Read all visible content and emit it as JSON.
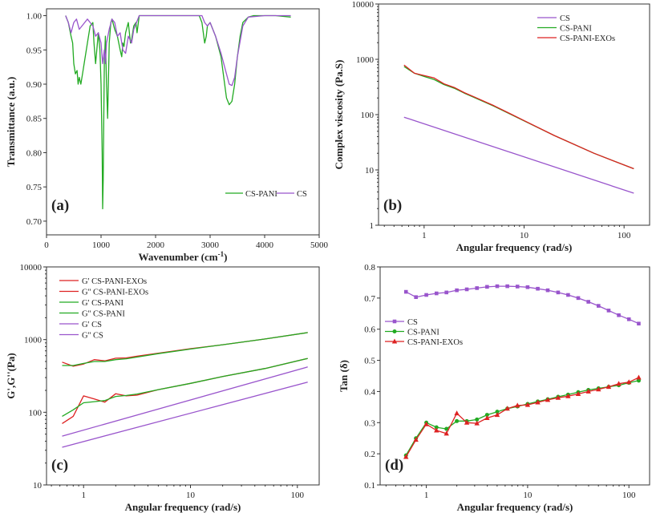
{
  "colors": {
    "cs": "#9955cc",
    "cs_pani": "#22aa22",
    "cs_pani_exos": "#dd2222",
    "axis": "#333333"
  },
  "chart_data": [
    {
      "panel": "(a)",
      "type": "line",
      "xlabel": "Wavenumber (cm",
      "xlabel_sup": "-1",
      "xlabel_end": ")",
      "ylabel": "Transmittance (a.u.)",
      "xlim": [
        0,
        5000
      ],
      "ylim": [
        0.68,
        1.01
      ],
      "xticks": [
        0,
        1000,
        2000,
        3000,
        4000,
        5000
      ],
      "yticks": [
        0.7,
        0.75,
        0.8,
        0.85,
        0.9,
        0.95,
        1.0
      ],
      "legend": [
        "CS-PANI",
        "CS"
      ],
      "series": [
        {
          "name": "CS-PANI",
          "color_key": "cs_pani",
          "x": [
            350,
            400,
            450,
            480,
            500,
            530,
            560,
            580,
            600,
            630,
            660,
            700,
            750,
            800,
            850,
            870,
            900,
            950,
            980,
            1000,
            1020,
            1030,
            1040,
            1050,
            1060,
            1080,
            1100,
            1120,
            1150,
            1180,
            1200,
            1250,
            1300,
            1350,
            1380,
            1400,
            1420,
            1450,
            1500,
            1540,
            1560,
            1600,
            1640,
            1660,
            1700,
            2800,
            2850,
            2900,
            2930,
            2950,
            3000,
            3100,
            3200,
            3250,
            3300,
            3350,
            3400,
            3450,
            3500,
            3550,
            3600,
            3700,
            3800,
            4000,
            4200,
            4480
          ],
          "y": [
            1.0,
            0.99,
            0.97,
            0.96,
            0.93,
            0.915,
            0.92,
            0.9,
            0.91,
            0.9,
            0.915,
            0.935,
            0.96,
            0.985,
            0.99,
            0.96,
            0.93,
            0.975,
            0.95,
            0.9,
            0.8,
            0.718,
            0.76,
            0.85,
            0.93,
            0.97,
            0.9,
            0.85,
            0.96,
            0.99,
            0.995,
            0.98,
            0.97,
            0.95,
            0.94,
            0.96,
            0.955,
            0.975,
            0.99,
            0.96,
            0.965,
            0.985,
            0.99,
            0.975,
            1.0,
            1.0,
            0.99,
            0.96,
            0.97,
            0.985,
            0.99,
            0.97,
            0.94,
            0.91,
            0.88,
            0.87,
            0.875,
            0.9,
            0.94,
            0.97,
            0.99,
            0.998,
            1.0,
            1.0,
            1.0,
            0.998
          ]
        },
        {
          "name": "CS",
          "color_key": "cs",
          "x": [
            350,
            400,
            450,
            500,
            550,
            600,
            650,
            700,
            750,
            800,
            850,
            900,
            950,
            1000,
            1030,
            1060,
            1080,
            1100,
            1150,
            1200,
            1250,
            1300,
            1350,
            1400,
            1450,
            1500,
            1560,
            1600,
            1650,
            1700,
            2850,
            2900,
            2950,
            3000,
            3100,
            3200,
            3300,
            3350,
            3400,
            3450,
            3500,
            3600,
            3700,
            4000,
            4480
          ],
          "y": [
            1.0,
            0.99,
            0.975,
            0.99,
            0.995,
            0.98,
            0.985,
            0.99,
            0.995,
            0.99,
            0.985,
            0.97,
            0.975,
            0.96,
            0.93,
            0.95,
            0.93,
            0.96,
            0.98,
            0.995,
            0.99,
            0.97,
            0.975,
            0.95,
            0.945,
            0.97,
            0.96,
            0.98,
            0.99,
            1.0,
            1.0,
            0.99,
            0.985,
            0.99,
            0.97,
            0.945,
            0.915,
            0.9,
            0.898,
            0.91,
            0.94,
            0.985,
            0.998,
            1.0,
            1.0
          ]
        }
      ]
    },
    {
      "panel": "(b)",
      "type": "line",
      "xlabel": "Angular frequency (rad/s)",
      "ylabel": "Complex viscosity (Pa.S)",
      "xscale": "log",
      "yscale": "log",
      "xlim": [
        0.35,
        180
      ],
      "ylim": [
        1,
        10000
      ],
      "xtick_labels": [
        "1",
        "10",
        "100"
      ],
      "ytick_labels": [
        "1",
        "10",
        "100",
        "1000",
        "10000"
      ],
      "legend": [
        "CS",
        "CS-PANI",
        "CS-PANI-EXOs"
      ],
      "series": [
        {
          "name": "CS",
          "color_key": "cs",
          "x": [
            0.63,
            125
          ],
          "y": [
            90,
            3.8
          ]
        },
        {
          "name": "CS-PANI",
          "color_key": "cs_pani",
          "x": [
            0.63,
            0.8,
            1.0,
            1.26,
            1.58,
            2.0,
            2.51,
            3.16,
            5,
            10,
            20,
            50,
            125
          ],
          "y": [
            740,
            560,
            490,
            430,
            350,
            300,
            245,
            205,
            142,
            77,
            42,
            20,
            10.5
          ]
        },
        {
          "name": "CS-PANI-EXOs",
          "color_key": "cs_pani_exos",
          "x": [
            0.63,
            0.8,
            1.0,
            1.26,
            1.58,
            2.0,
            2.51,
            3.16,
            5,
            10,
            20,
            50,
            125
          ],
          "y": [
            790,
            560,
            510,
            460,
            360,
            310,
            250,
            210,
            145,
            78,
            42,
            20,
            10.5
          ]
        }
      ]
    },
    {
      "panel": "(c)",
      "type": "line",
      "xlabel": "Angular frequency (rad/s)",
      "ylabel": "G',G''(Pa)",
      "xscale": "log",
      "yscale": "log",
      "xlim": [
        0.45,
        160
      ],
      "ylim": [
        10,
        10000
      ],
      "xtick_labels": [
        "1",
        "10",
        "100"
      ],
      "ytick_labels": [
        "10",
        "100",
        "1000",
        "10000"
      ],
      "legend": [
        "G' CS-PANI-EXOs",
        "G'' CS-PANI-EXOs",
        "G' CS-PANI",
        "G'' CS-PANI",
        "G' CS",
        "G'' CS"
      ],
      "series": [
        {
          "name": "G' CS-PANI-EXOs",
          "color_key": "cs_pani_exos",
          "x": [
            0.63,
            0.8,
            1.0,
            1.26,
            1.58,
            2.0,
            2.51,
            3.16,
            5,
            10,
            20,
            50,
            125
          ],
          "y": [
            490,
            430,
            460,
            530,
            510,
            555,
            560,
            590,
            650,
            750,
            850,
            1020,
            1250
          ]
        },
        {
          "name": "G'' CS-PANI-EXOs",
          "color_key": "cs_pani_exos",
          "x": [
            0.63,
            0.8,
            1.0,
            1.26,
            1.58,
            2.0,
            2.51,
            3.16,
            5,
            10,
            20,
            50,
            125
          ],
          "y": [
            70,
            88,
            168,
            152,
            138,
            180,
            168,
            172,
            205,
            250,
            310,
            400,
            550
          ]
        },
        {
          "name": "G' CS-PANI",
          "color_key": "cs_pani",
          "x": [
            0.63,
            0.8,
            1.0,
            1.26,
            1.58,
            2.0,
            2.51,
            3.16,
            5,
            10,
            20,
            50,
            125
          ],
          "y": [
            440,
            440,
            470,
            500,
            500,
            530,
            545,
            575,
            640,
            740,
            850,
            1020,
            1250
          ]
        },
        {
          "name": "G'' CS-PANI",
          "color_key": "cs_pani",
          "x": [
            0.63,
            0.8,
            1.0,
            1.26,
            1.58,
            2.0,
            2.51,
            3.16,
            5,
            10,
            20,
            50,
            125
          ],
          "y": [
            88,
            108,
            135,
            140,
            145,
            165,
            170,
            178,
            205,
            250,
            310,
            400,
            550
          ]
        },
        {
          "name": "G' CS",
          "color_key": "cs",
          "x": [
            0.63,
            125
          ],
          "y": [
            47,
            420
          ]
        },
        {
          "name": "G'' CS",
          "color_key": "cs",
          "x": [
            0.63,
            125
          ],
          "y": [
            33,
            260
          ]
        }
      ]
    },
    {
      "panel": "(d)",
      "type": "line",
      "xlabel": "Angular frequency (rad/s)",
      "ylabel": "Tan (δ)",
      "xscale": "log",
      "xlim": [
        0.35,
        160
      ],
      "ylim": [
        0.1,
        0.8
      ],
      "xtick_labels": [
        "1",
        "10",
        "100"
      ],
      "yticks": [
        0.1,
        0.2,
        0.3,
        0.4,
        0.5,
        0.6,
        0.7,
        0.8
      ],
      "legend": [
        "CS",
        "CS-PANI",
        "CS-PANI-EXOs"
      ],
      "series": [
        {
          "name": "CS",
          "color_key": "cs",
          "marker": "square",
          "x": [
            0.63,
            0.79,
            1.0,
            1.26,
            1.58,
            2.0,
            2.51,
            3.16,
            3.98,
            5.01,
            6.31,
            7.94,
            10,
            12.6,
            15.8,
            20,
            25.1,
            31.6,
            39.8,
            50.1,
            63.1,
            79.4,
            100,
            125
          ],
          "y": [
            0.72,
            0.703,
            0.71,
            0.715,
            0.718,
            0.725,
            0.728,
            0.732,
            0.736,
            0.738,
            0.738,
            0.737,
            0.735,
            0.73,
            0.725,
            0.718,
            0.71,
            0.7,
            0.688,
            0.675,
            0.66,
            0.645,
            0.632,
            0.618
          ]
        },
        {
          "name": "CS-PANI",
          "color_key": "cs_pani",
          "marker": "circle",
          "x": [
            0.63,
            0.79,
            1.0,
            1.26,
            1.58,
            2.0,
            2.51,
            3.16,
            3.98,
            5.01,
            6.31,
            7.94,
            10,
            12.6,
            15.8,
            20,
            25.1,
            31.6,
            39.8,
            50.1,
            63.1,
            79.4,
            100,
            125
          ],
          "y": [
            0.195,
            0.25,
            0.3,
            0.285,
            0.28,
            0.305,
            0.305,
            0.31,
            0.325,
            0.335,
            0.345,
            0.352,
            0.36,
            0.368,
            0.375,
            0.383,
            0.39,
            0.398,
            0.405,
            0.41,
            0.415,
            0.42,
            0.428,
            0.435
          ]
        },
        {
          "name": "CS-PANI-EXOs",
          "color_key": "cs_pani_exos",
          "marker": "triangle",
          "x": [
            0.63,
            0.79,
            1.0,
            1.26,
            1.58,
            2.0,
            2.51,
            3.16,
            3.98,
            5.01,
            6.31,
            7.94,
            10,
            12.6,
            15.8,
            20,
            25.1,
            31.6,
            39.8,
            50.1,
            63.1,
            79.4,
            100,
            125
          ],
          "y": [
            0.19,
            0.245,
            0.295,
            0.275,
            0.265,
            0.33,
            0.3,
            0.298,
            0.315,
            0.325,
            0.345,
            0.355,
            0.357,
            0.365,
            0.373,
            0.38,
            0.385,
            0.392,
            0.4,
            0.407,
            0.415,
            0.425,
            0.43,
            0.445
          ]
        }
      ]
    }
  ]
}
